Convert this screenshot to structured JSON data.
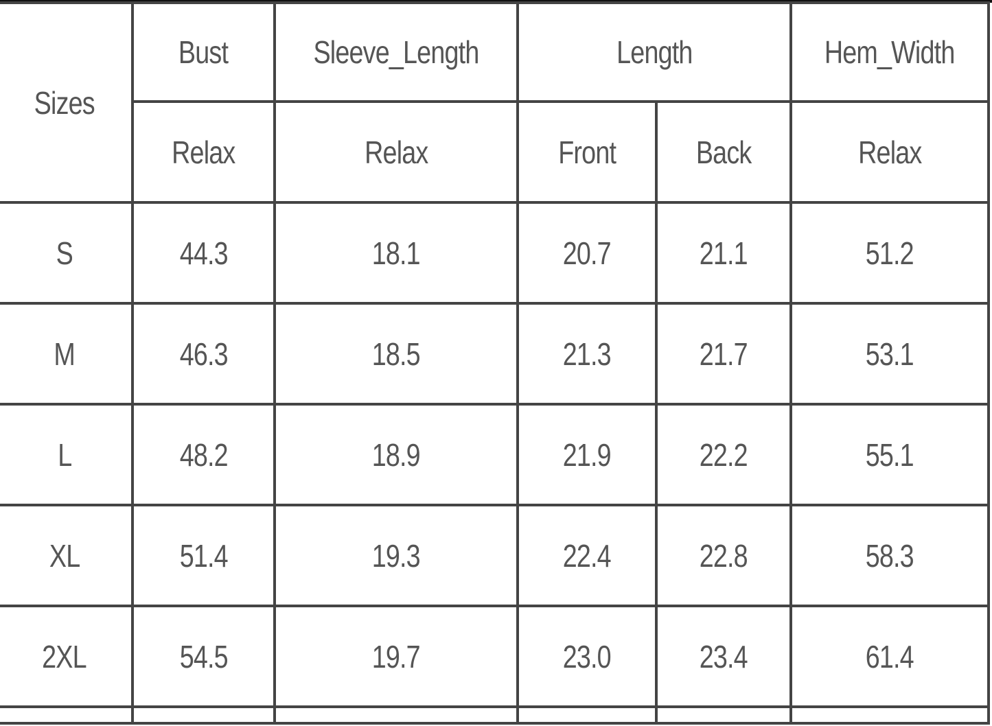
{
  "header": {
    "sizes": "Sizes",
    "groups": [
      "Bust",
      "Sleeve_Length",
      "Length",
      "Hem_Width"
    ],
    "subheaders": [
      "Relax",
      "Relax",
      "Front",
      "Back",
      "Relax"
    ]
  },
  "rows": [
    {
      "size": "S",
      "values": [
        "44.3",
        "18.1",
        "20.7",
        "21.1",
        "51.2"
      ]
    },
    {
      "size": "M",
      "values": [
        "46.3",
        "18.5",
        "21.3",
        "21.7",
        "53.1"
      ]
    },
    {
      "size": "L",
      "values": [
        "48.2",
        "18.9",
        "21.9",
        "22.2",
        "55.1"
      ]
    },
    {
      "size": "XL",
      "values": [
        "51.4",
        "19.3",
        "22.4",
        "22.8",
        "58.3"
      ]
    },
    {
      "size": "2XL",
      "values": [
        "54.5",
        "19.7",
        "23.0",
        "23.4",
        "61.4"
      ]
    }
  ]
}
